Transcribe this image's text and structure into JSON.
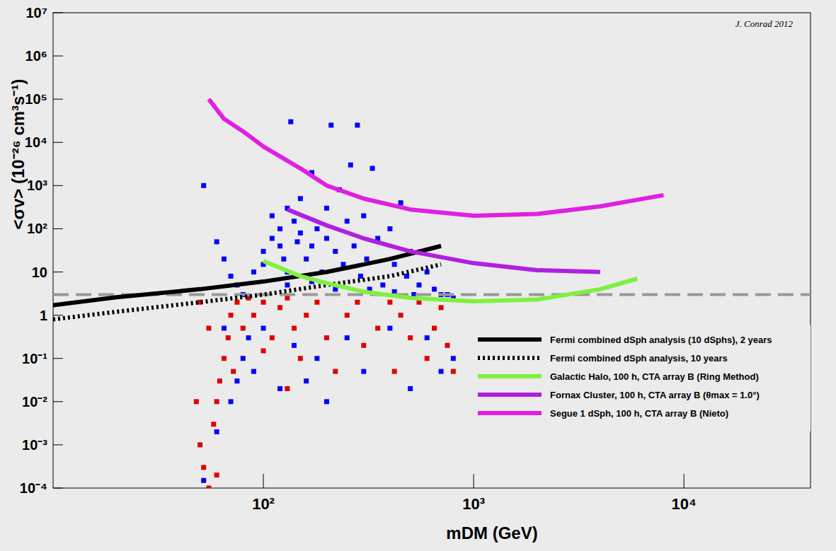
{
  "chart_data": {
    "type": "scatter",
    "x_label": "mDM (GeV)",
    "y_label": "<σv> (10⁻²⁶ cm³s⁻¹)",
    "annotation": "J. Conrad 2012",
    "log": true,
    "grid": false,
    "legend": "lower right",
    "xlim": [
      10,
      40000
    ],
    "ylim": [
      0.0001,
      10000000
    ],
    "xticks": [
      {
        "value": 100,
        "label": "10²"
      },
      {
        "value": 1000,
        "label": "10³"
      },
      {
        "value": 10000,
        "label": "10⁴"
      }
    ],
    "yticks": [
      {
        "value": 0.0001,
        "label": "10⁻⁴"
      },
      {
        "value": 0.001,
        "label": "10⁻³"
      },
      {
        "value": 0.01,
        "label": "10⁻²"
      },
      {
        "value": 0.1,
        "label": "10⁻¹"
      },
      1,
      10,
      {
        "value": 100,
        "label": "10²"
      },
      {
        "value": 1000,
        "label": "10³"
      },
      {
        "value": 10000,
        "label": "10⁴"
      },
      {
        "value": 100000,
        "label": "10⁵"
      },
      {
        "value": 1000000,
        "label": "10⁶"
      },
      {
        "value": 10000000,
        "label": "10⁷"
      }
    ],
    "reference_line": {
      "value": 3,
      "color": "#999999",
      "line_style": "dashed"
    },
    "series": [
      {
        "type": "scatter",
        "marker": "square",
        "color": "#0000ff",
        "x": [
          52,
          60,
          65,
          70,
          75,
          80,
          90,
          100,
          100,
          110,
          110,
          120,
          120,
          125,
          130,
          130,
          135,
          140,
          145,
          150,
          150,
          160,
          170,
          170,
          180,
          190,
          200,
          200,
          210,
          220,
          230,
          240,
          250,
          260,
          270,
          280,
          290,
          300,
          310,
          330,
          350,
          370,
          400,
          420,
          450,
          480,
          500,
          550,
          600,
          650,
          700,
          750,
          800,
          130,
          170,
          220,
          320,
          420,
          520,
          70,
          75,
          80,
          85,
          90,
          100,
          120,
          140,
          160,
          180,
          200,
          250,
          300,
          400,
          500,
          600,
          700,
          800,
          65,
          60,
          52
        ],
        "values": [
          1000,
          50,
          20,
          8,
          5,
          3,
          10,
          30,
          15,
          200,
          60,
          100,
          40,
          20,
          300,
          10,
          30000,
          150,
          50,
          500,
          80,
          20,
          2000,
          40,
          100,
          10,
          300,
          60,
          25000,
          30,
          800,
          15,
          150,
          3000,
          40,
          25000,
          8,
          200,
          20,
          2500,
          60,
          5,
          100,
          15,
          400,
          8,
          30,
          5,
          10,
          4,
          3,
          3,
          2.5,
          5,
          6,
          4,
          4,
          3.5,
          3,
          0.01,
          0.03,
          0.1,
          0.3,
          0.05,
          0.5,
          0.02,
          0.2,
          0.03,
          0.1,
          0.01,
          0.3,
          0.05,
          0.5,
          0.02,
          0.3,
          0.05,
          0.1,
          0.5,
          0.002,
          0.00015
        ]
      },
      {
        "type": "scatter",
        "marker": "square",
        "color": "#e00000",
        "x": [
          50,
          52,
          55,
          58,
          60,
          60,
          62,
          65,
          68,
          70,
          72,
          75,
          80,
          85,
          90,
          100,
          110,
          120,
          130,
          140,
          150,
          160,
          180,
          200,
          220,
          250,
          280,
          300,
          350,
          400,
          420,
          450,
          500,
          550,
          600,
          650,
          700,
          750,
          800,
          50,
          55,
          48,
          100,
          130
        ],
        "values": [
          0.001,
          0.0003,
          0.0001,
          0.003,
          0.01,
          0.0002,
          0.03,
          0.1,
          0.3,
          1,
          0.05,
          2,
          0.5,
          2.5,
          1,
          2,
          0.3,
          1.5,
          2.5,
          0.5,
          0.1,
          1,
          2,
          0.3,
          0.05,
          1,
          2,
          0.2,
          0.5,
          2,
          0.05,
          1,
          0.3,
          2,
          0.1,
          0.5,
          1.5,
          0.2,
          0.05,
          2,
          0.5,
          0.01,
          0.15,
          0.02
        ]
      },
      {
        "type": "line",
        "name": "Fermi combined dSph analysis (10 dSphs), 2 years",
        "color": "#000000",
        "line_style": "solid",
        "x": [
          10,
          20,
          50,
          100,
          200,
          400,
          700
        ],
        "values": [
          1.7,
          2.6,
          4,
          6,
          10,
          20,
          40
        ]
      },
      {
        "type": "line",
        "name": "Fermi combined dSph analysis, 10 years",
        "color": "#000000",
        "line_style": "dotted",
        "x": [
          10,
          20,
          50,
          100,
          200,
          400,
          700
        ],
        "values": [
          0.8,
          1.2,
          2,
          3,
          5,
          8,
          15
        ]
      },
      {
        "type": "line",
        "name": "Galactic Halo, 100 h, CTA array B (Ring Method)",
        "color": "#80f040",
        "line_style": "solid",
        "x": [
          100,
          150,
          200,
          300,
          500,
          1000,
          2000,
          4000,
          6000
        ],
        "values": [
          18,
          8,
          5.5,
          3.5,
          2.5,
          2.1,
          2.3,
          4,
          7
        ]
      },
      {
        "type": "line",
        "name": "Fornax Cluster, 100 h, CTA array B (θmax = 1.0°)",
        "color": "#b020e0",
        "line_style": "solid",
        "x": [
          130,
          200,
          300,
          500,
          1000,
          2000,
          4000
        ],
        "values": [
          280,
          120,
          60,
          30,
          16,
          11,
          10
        ]
      },
      {
        "type": "line",
        "name": "Segue 1 dSph, 100 h, CTA array B (Nieto)",
        "color": "#e020e0",
        "line_style": "solid",
        "x": [
          55,
          65,
          80,
          100,
          150,
          200,
          300,
          500,
          1000,
          2000,
          4000,
          8000
        ],
        "values": [
          100000,
          35000,
          18000,
          8000,
          2500,
          1000,
          500,
          280,
          200,
          220,
          330,
          600
        ]
      }
    ]
  }
}
